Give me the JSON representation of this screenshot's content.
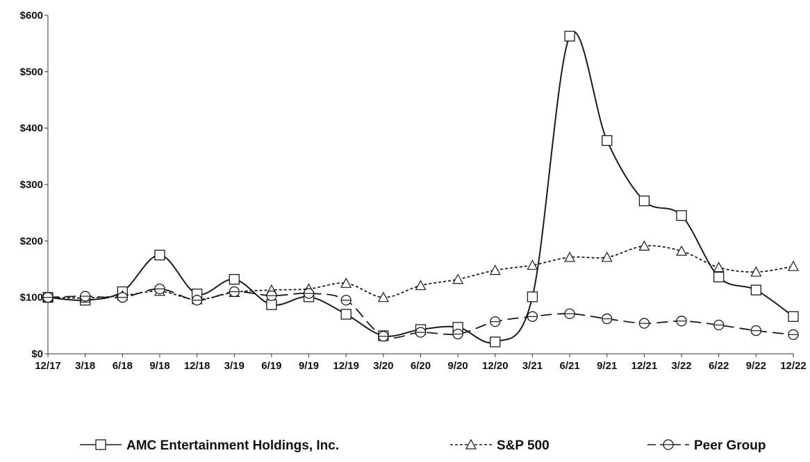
{
  "chart_data": {
    "type": "line",
    "categories": [
      "12/17",
      "3/18",
      "6/18",
      "9/18",
      "12/18",
      "3/19",
      "6/19",
      "9/19",
      "12/19",
      "3/20",
      "6/20",
      "9/20",
      "12/20",
      "3/21",
      "6/21",
      "9/21",
      "12/21",
      "3/22",
      "6/22",
      "9/22",
      "12/22"
    ],
    "ylim": [
      0,
      600
    ],
    "yticks": [
      0,
      100,
      200,
      300,
      400,
      500,
      600
    ],
    "ytick_labels": [
      "$0",
      "$100",
      "$200",
      "$300",
      "$400",
      "$500",
      "$600"
    ],
    "grid": false,
    "legend_position": "bottom",
    "series": [
      {
        "name": "AMC Entertainment Holdings, Inc.",
        "marker": "square",
        "line_style": "solid",
        "values": [
          100,
          95,
          110,
          175,
          106,
          132,
          87,
          101,
          70,
          32,
          43,
          47,
          21,
          101,
          563,
          378,
          271,
          245,
          136,
          113,
          66
        ]
      },
      {
        "name": "S&P 500",
        "marker": "triangle",
        "line_style": "dotted",
        "values": [
          100,
          99,
          103,
          111,
          96,
          109,
          113,
          115,
          125,
          100,
          121,
          132,
          148,
          157,
          171,
          171,
          191,
          182,
          153,
          145,
          155
        ]
      },
      {
        "name": "Peer Group",
        "marker": "circle",
        "line_style": "dashed",
        "values": [
          100,
          102,
          100,
          115,
          95,
          110,
          103,
          107,
          95,
          31,
          38,
          35,
          57,
          66,
          71,
          62,
          54,
          58,
          51,
          41,
          34
        ]
      }
    ]
  },
  "colors": {
    "line": "#1a1a1a",
    "axis": "#333333",
    "background": "#ffffff"
  }
}
